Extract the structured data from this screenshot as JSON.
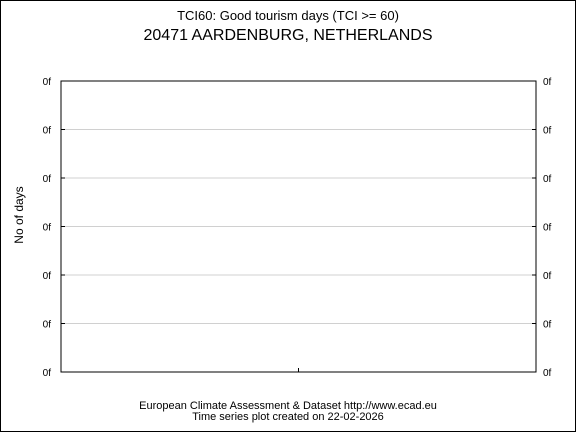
{
  "header": {
    "title": "TCI60: Good tourism days (TCI >= 60)",
    "subtitle": "20471 AARDENBURG, NETHERLANDS"
  },
  "footer": {
    "line1": "European Climate Assessment & Dataset  http://www.ecad.eu",
    "line2": "Time series plot created on 22-02-2026"
  },
  "colors": {
    "axis": "#000000",
    "grid": "#d0d0d0",
    "background": "#ffffff"
  },
  "chart_data": {
    "type": "line",
    "title": "TCI60: Good tourism days (TCI >= 60)",
    "subtitle": "20471 AARDENBURG, NETHERLANDS",
    "xlabel": "",
    "ylabel": "No of days",
    "y_ticks": [
      "0f",
      "0f",
      "0f",
      "0f",
      "0f",
      "0f",
      "0f"
    ],
    "y_ticks_right": [
      "0f",
      "0f",
      "0f",
      "0f",
      "0f",
      "0f",
      "0f"
    ],
    "x_ticks": [],
    "grid": true,
    "series": []
  }
}
